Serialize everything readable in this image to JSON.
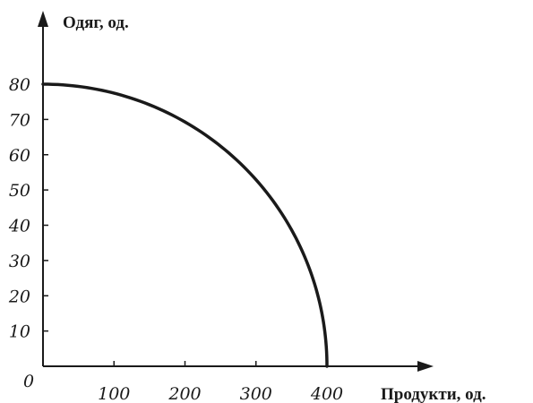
{
  "chart_data": {
    "type": "line",
    "title": "",
    "xlabel": "Продукти, од.",
    "ylabel": "Одяг, од.",
    "origin_label": "0",
    "xlim": [
      0,
      400
    ],
    "ylim": [
      0,
      80
    ],
    "x_ticks": [
      100,
      200,
      300,
      400
    ],
    "y_ticks": [
      10,
      20,
      30,
      40,
      50,
      60,
      70,
      80
    ],
    "grid": false,
    "series": [
      {
        "x": [
          0,
          50,
          100,
          150,
          200,
          250,
          300,
          350,
          380,
          400
        ],
        "y": [
          80,
          79.4,
          77.5,
          74.2,
          69.3,
          62.4,
          52.9,
          38.7,
          25,
          0
        ]
      }
    ]
  }
}
